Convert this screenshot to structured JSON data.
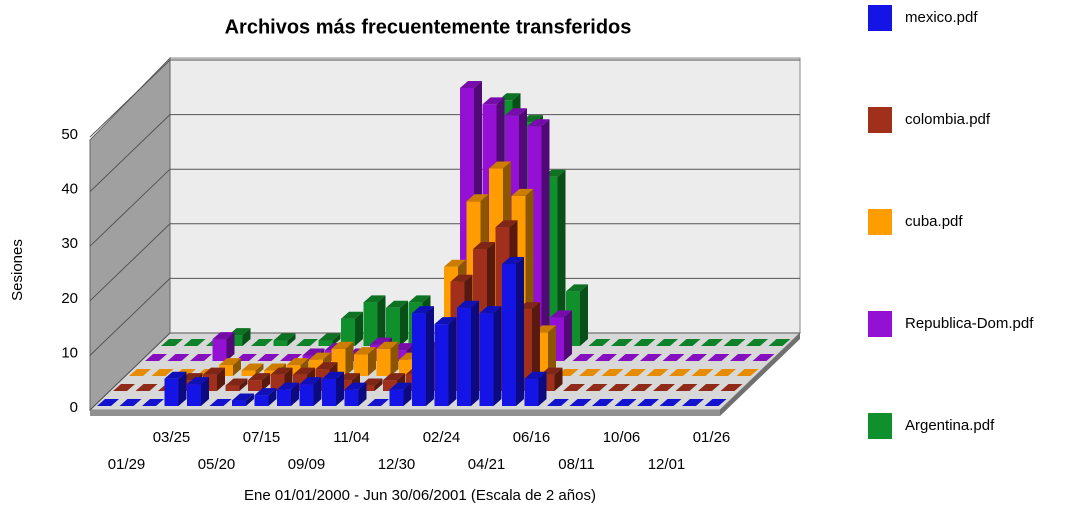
{
  "chart_data": {
    "type": "bar3d",
    "title": "Archivos más frecuentemente transferidos",
    "x_label": "Ene 01/01/2000 - Jun 30/06/2001 (Escala de 2 años)",
    "y_label": "Sesiones",
    "categories": [
      null,
      "01/29",
      null,
      "03/25",
      null,
      "05/20",
      null,
      "07/15",
      null,
      "09/09",
      null,
      "11/04",
      null,
      "12/30",
      null,
      "02/24",
      null,
      "04/21",
      null,
      "06/16",
      null,
      "08/11",
      null,
      "10/06",
      null,
      "12/01",
      null,
      "01/26"
    ],
    "series": [
      {
        "name": "mexico.pdf",
        "color": "#1414e6",
        "values": [
          0,
          0,
          0,
          5,
          4,
          0,
          1,
          2,
          3,
          4,
          5,
          3,
          0,
          3,
          17,
          15,
          18,
          17,
          26,
          5,
          0,
          0,
          0,
          0,
          0,
          0,
          0,
          0
        ]
      },
      {
        "name": "colombia.pdf",
        "color": "#a0301c",
        "values": [
          0,
          0,
          0,
          2,
          3,
          1,
          2,
          3,
          3,
          4,
          2,
          1,
          2,
          3,
          8,
          20,
          26,
          30,
          15,
          3,
          0,
          0,
          0,
          0,
          0,
          0,
          0,
          0
        ]
      },
      {
        "name": "cuba.pdf",
        "color": "#ff9c00",
        "values": [
          0,
          0,
          0,
          0,
          2,
          1,
          1,
          2,
          3,
          5,
          4,
          5,
          3,
          4,
          20,
          32,
          38,
          33,
          8,
          0,
          0,
          0,
          0,
          0,
          0,
          0,
          0,
          0
        ]
      },
      {
        "name": "Republica-Dom.pdf",
        "color": "#9410d4",
        "values": [
          0,
          0,
          0,
          4,
          0,
          0,
          0,
          1,
          2,
          1,
          3,
          2,
          2,
          3,
          50,
          47,
          45,
          43,
          8,
          0,
          0,
          0,
          0,
          0,
          0,
          0,
          0,
          0
        ]
      },
      {
        "name": "Argentina.pdf",
        "color": "#10902c",
        "values": [
          0,
          0,
          0,
          2,
          0,
          1,
          0,
          1,
          5,
          8,
          7,
          8,
          0,
          0,
          0,
          45,
          41,
          31,
          10,
          0,
          0,
          0,
          0,
          0,
          0,
          0,
          0,
          0
        ]
      }
    ],
    "ylim": [
      0,
      50
    ],
    "yticks": [
      0,
      10,
      20,
      30,
      40,
      50
    ],
    "grid": true
  }
}
